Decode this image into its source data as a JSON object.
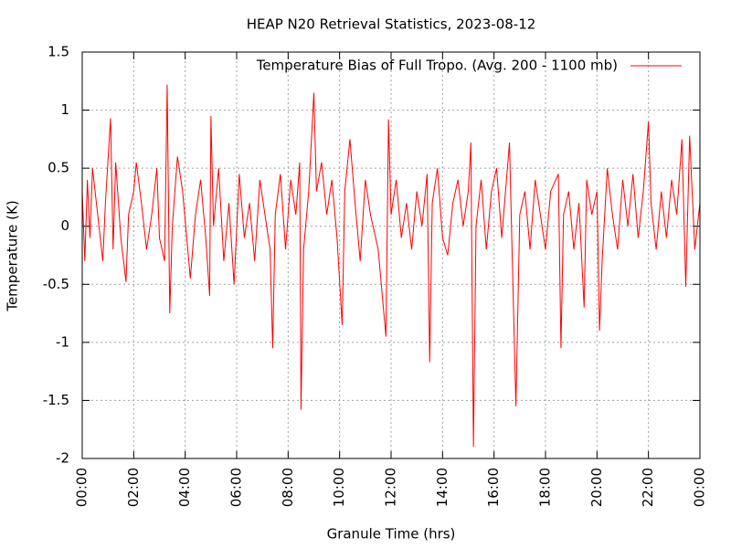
{
  "chart_data": {
    "type": "line",
    "title": "HEAP N20 Retrieval Statistics, 2023-08-12",
    "x_label": "Granule Time (hrs)",
    "y_label": "Temperature (K)",
    "x": [
      0,
      0.1,
      0.2,
      0.3,
      0.4,
      0.6,
      0.8,
      0.9,
      1.1,
      1.2,
      1.3,
      1.5,
      1.7,
      1.8,
      2.0,
      2.1,
      2.3,
      2.5,
      2.7,
      2.9,
      3.0,
      3.2,
      3.3,
      3.4,
      3.5,
      3.7,
      3.9,
      4.1,
      4.2,
      4.4,
      4.6,
      4.8,
      4.95,
      5.0,
      5.1,
      5.3,
      5.5,
      5.7,
      5.9,
      6.1,
      6.3,
      6.5,
      6.7,
      6.9,
      7.1,
      7.3,
      7.4,
      7.5,
      7.7,
      7.9,
      8.1,
      8.3,
      8.45,
      8.5,
      8.6,
      8.8,
      9.0,
      9.1,
      9.3,
      9.5,
      9.7,
      9.9,
      10.1,
      10.2,
      10.4,
      10.6,
      10.8,
      11.0,
      11.2,
      11.5,
      11.8,
      11.9,
      12.0,
      12.2,
      12.4,
      12.6,
      12.8,
      13.0,
      13.2,
      13.4,
      13.5,
      13.6,
      13.8,
      14.0,
      14.2,
      14.4,
      14.6,
      14.8,
      15.0,
      15.1,
      15.2,
      15.3,
      15.5,
      15.7,
      15.9,
      16.1,
      16.3,
      16.6,
      16.7,
      16.85,
      17.0,
      17.2,
      17.4,
      17.6,
      17.8,
      18.0,
      18.2,
      18.5,
      18.6,
      18.7,
      18.9,
      19.1,
      19.3,
      19.5,
      19.6,
      19.8,
      20.0,
      20.1,
      20.2,
      20.4,
      20.6,
      20.8,
      21.0,
      21.2,
      21.4,
      21.6,
      21.8,
      22.0,
      22.1,
      22.3,
      22.5,
      22.7,
      22.9,
      23.1,
      23.3,
      23.45,
      23.6,
      23.8,
      24.0
    ],
    "series": [
      {
        "name": "Temperature Bias of Full Tropo. (Avg. 200 - 1100 mb)",
        "color": "#ff0000",
        "values": [
          0.3,
          -0.3,
          0.4,
          -0.1,
          0.5,
          0.1,
          -0.3,
          0.2,
          0.93,
          -0.2,
          0.55,
          -0.1,
          -0.48,
          0.1,
          0.3,
          0.55,
          0.2,
          -0.2,
          0.1,
          0.5,
          -0.1,
          -0.3,
          1.22,
          -0.75,
          0.0,
          0.6,
          0.3,
          -0.2,
          -0.45,
          0.1,
          0.4,
          -0.1,
          -0.6,
          0.95,
          0.0,
          0.5,
          -0.3,
          0.2,
          -0.5,
          0.45,
          -0.1,
          0.2,
          -0.3,
          0.4,
          0.1,
          -0.2,
          -1.05,
          0.1,
          0.45,
          -0.2,
          0.4,
          0.1,
          0.55,
          -1.58,
          -0.2,
          0.3,
          1.15,
          0.3,
          0.55,
          0.1,
          0.4,
          -0.1,
          -0.85,
          0.3,
          0.75,
          0.2,
          -0.3,
          0.4,
          0.1,
          -0.2,
          -0.95,
          0.92,
          0.1,
          0.4,
          -0.1,
          0.2,
          -0.2,
          0.3,
          0.0,
          0.45,
          -1.17,
          0.2,
          0.5,
          -0.1,
          -0.25,
          0.2,
          0.4,
          0.0,
          0.3,
          0.72,
          -1.9,
          0.0,
          0.4,
          -0.2,
          0.3,
          0.5,
          -0.1,
          0.72,
          -0.2,
          -1.55,
          0.1,
          0.3,
          -0.2,
          0.4,
          0.1,
          -0.2,
          0.3,
          0.45,
          -1.05,
          0.1,
          0.3,
          -0.2,
          0.2,
          -0.7,
          0.4,
          0.1,
          0.3,
          -0.9,
          -0.3,
          0.5,
          0.1,
          -0.2,
          0.4,
          0.0,
          0.45,
          -0.1,
          0.3,
          0.9,
          0.2,
          -0.2,
          0.3,
          -0.1,
          0.4,
          0.1,
          0.75,
          -0.52,
          0.78,
          -0.2,
          0.2
        ]
      }
    ],
    "xlim": [
      0,
      24
    ],
    "xticks": [
      {
        "value": 0,
        "label": "00:00"
      },
      {
        "value": 2,
        "label": "02:00"
      },
      {
        "value": 4,
        "label": "04:00"
      },
      {
        "value": 6,
        "label": "06:00"
      },
      {
        "value": 8,
        "label": "08:00"
      },
      {
        "value": 10,
        "label": "10:00"
      },
      {
        "value": 12,
        "label": "12:00"
      },
      {
        "value": 14,
        "label": "14:00"
      },
      {
        "value": 16,
        "label": "16:00"
      },
      {
        "value": 18,
        "label": "18:00"
      },
      {
        "value": 20,
        "label": "20:00"
      },
      {
        "value": 22,
        "label": "22:00"
      },
      {
        "value": 24,
        "label": "00:00"
      }
    ],
    "ylim": [
      -2,
      1.5
    ],
    "yticks": [
      -2,
      -1.5,
      -1,
      -0.5,
      0,
      0.5,
      1,
      1.5
    ],
    "grid": true,
    "legend": "top-right"
  }
}
